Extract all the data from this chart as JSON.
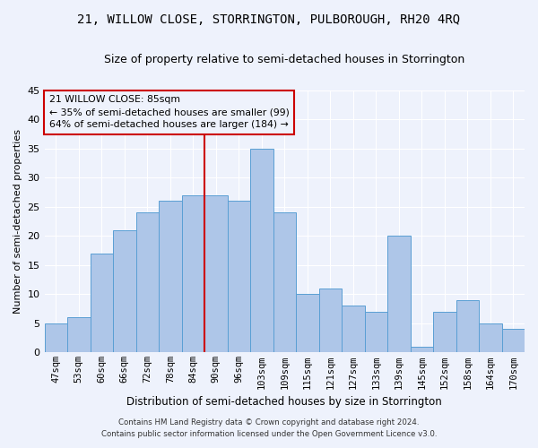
{
  "title": "21, WILLOW CLOSE, STORRINGTON, PULBOROUGH, RH20 4RQ",
  "subtitle": "Size of property relative to semi-detached houses in Storrington",
  "xlabel": "Distribution of semi-detached houses by size in Storrington",
  "ylabel": "Number of semi-detached properties",
  "categories": [
    "47sqm",
    "53sqm",
    "60sqm",
    "66sqm",
    "72sqm",
    "78sqm",
    "84sqm",
    "90sqm",
    "96sqm",
    "103sqm",
    "109sqm",
    "115sqm",
    "121sqm",
    "127sqm",
    "133sqm",
    "139sqm",
    "145sqm",
    "152sqm",
    "158sqm",
    "164sqm",
    "170sqm"
  ],
  "values": [
    5,
    6,
    17,
    21,
    24,
    26,
    27,
    27,
    26,
    35,
    24,
    10,
    11,
    8,
    7,
    20,
    1,
    7,
    9,
    5,
    4
  ],
  "bar_color": "#aec6e8",
  "bar_edge_color": "#5a9fd4",
  "vline_color": "#cc0000",
  "annotation_title": "21 WILLOW CLOSE: 85sqm",
  "annotation_line1": "← 35% of semi-detached houses are smaller (99)",
  "annotation_line2": "64% of semi-detached houses are larger (184) →",
  "annotation_box_color": "#cc0000",
  "ylim": [
    0,
    45
  ],
  "yticks": [
    0,
    5,
    10,
    15,
    20,
    25,
    30,
    35,
    40,
    45
  ],
  "footnote1": "Contains HM Land Registry data © Crown copyright and database right 2024.",
  "footnote2": "Contains public sector information licensed under the Open Government Licence v3.0.",
  "background_color": "#eef2fc",
  "grid_color": "#ffffff",
  "title_fontsize": 10,
  "subtitle_fontsize": 9
}
